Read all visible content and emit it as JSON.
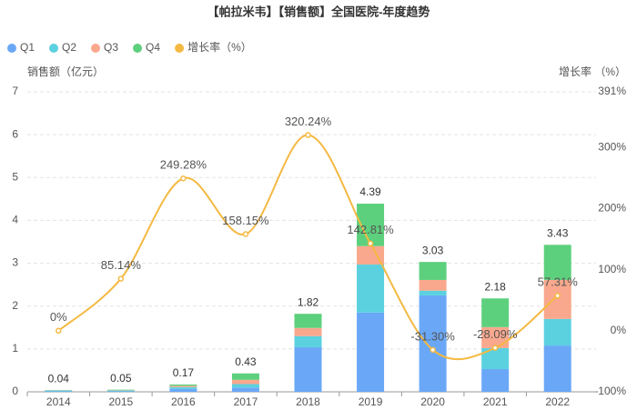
{
  "chart_data": {
    "type": "bar-line",
    "title": "【帕拉米韦】【销售额】全国医院-年度趋势",
    "y_label": "销售额（亿元）",
    "y2_label": "增长率 （%）",
    "categories": [
      "2014",
      "2015",
      "2016",
      "2017",
      "2018",
      "2019",
      "2020",
      "2021",
      "2022"
    ],
    "series": [
      {
        "name": "Q1",
        "color": "#6aa8f7",
        "values": [
          0.01,
          0.01,
          0.07,
          0.1,
          1.04,
          1.85,
          2.25,
          0.53,
          1.08
        ]
      },
      {
        "name": "Q2",
        "color": "#5bd1df",
        "values": [
          0.02,
          0.02,
          0.04,
          0.08,
          0.26,
          1.12,
          0.11,
          0.49,
          0.62
        ]
      },
      {
        "name": "Q3",
        "color": "#f9a88d",
        "values": [
          0.005,
          0.01,
          0.03,
          0.1,
          0.19,
          0.43,
          0.25,
          0.49,
          0.91
        ]
      },
      {
        "name": "Q4",
        "color": "#5dd07d",
        "values": [
          0.005,
          0.01,
          0.03,
          0.15,
          0.33,
          0.99,
          0.42,
          0.67,
          0.82
        ]
      },
      {
        "name": "增长率（%）",
        "color": "#f4b942",
        "axis": "y2",
        "type": "line",
        "values": [
          0,
          85.14,
          249.28,
          158.15,
          320.24,
          142.81,
          -31.3,
          -28.09,
          57.31
        ],
        "value_labels": [
          "0%",
          "85.14%",
          "249.28%",
          "158.15%",
          "320.24%",
          "142.81%",
          "-31.30%",
          "-28.09%",
          "57.31%"
        ]
      }
    ],
    "totals": [
      0.04,
      0.05,
      0.17,
      0.43,
      1.82,
      4.39,
      3.03,
      2.18,
      3.43
    ],
    "ylim": [
      0,
      7
    ],
    "yticks": [
      0,
      1,
      2,
      3,
      4,
      5,
      6,
      7
    ],
    "y2lim": [
      -100,
      391
    ],
    "y2ticks": [
      {
        "value": -100,
        "label": "-100%"
      },
      {
        "value": 0,
        "label": "0%"
      },
      {
        "value": 100,
        "label": "100%"
      },
      {
        "value": 200,
        "label": "200%"
      },
      {
        "value": 300,
        "label": "300%"
      },
      {
        "value": 391,
        "label": "391%"
      }
    ],
    "grid": true,
    "legend": "top-left"
  }
}
